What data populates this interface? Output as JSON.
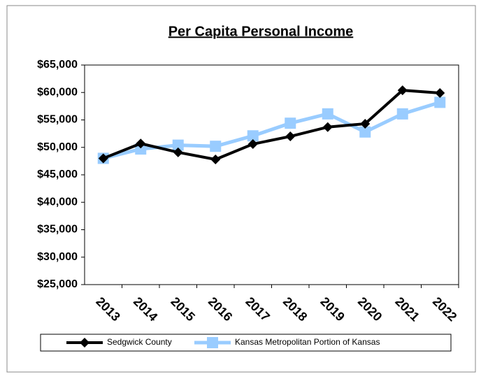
{
  "chart_data": {
    "type": "line",
    "title": "Per Capita Personal Income",
    "categories": [
      "2013",
      "2014",
      "2015",
      "2016",
      "2017",
      "2018",
      "2019",
      "2020",
      "2021",
      "2022"
    ],
    "series": [
      {
        "name": "Sedgwick County",
        "color": "#000000",
        "marker": "diamond",
        "values": [
          48000,
          50700,
          49100,
          47800,
          50600,
          52000,
          53700,
          54300,
          60400,
          59900
        ]
      },
      {
        "name": "Kansas Metropolitan Portion of Kansas",
        "color": "#99ccff",
        "marker": "square",
        "values": [
          48000,
          49700,
          50400,
          50200,
          52100,
          54400,
          56100,
          52800,
          56100,
          58200
        ]
      }
    ],
    "ylim": [
      25000,
      65000
    ],
    "yticks": [
      {
        "value": 25000,
        "label": "$25,000"
      },
      {
        "value": 30000,
        "label": "$30,000"
      },
      {
        "value": 35000,
        "label": "$35,000"
      },
      {
        "value": 40000,
        "label": "$40,000"
      },
      {
        "value": 45000,
        "label": "$45,000"
      },
      {
        "value": 50000,
        "label": "$50,000"
      },
      {
        "value": 55000,
        "label": "$55,000"
      },
      {
        "value": 60000,
        "label": "$60,000"
      },
      {
        "value": 65000,
        "label": "$65,000"
      }
    ],
    "grid": false,
    "legend": "bottom"
  }
}
